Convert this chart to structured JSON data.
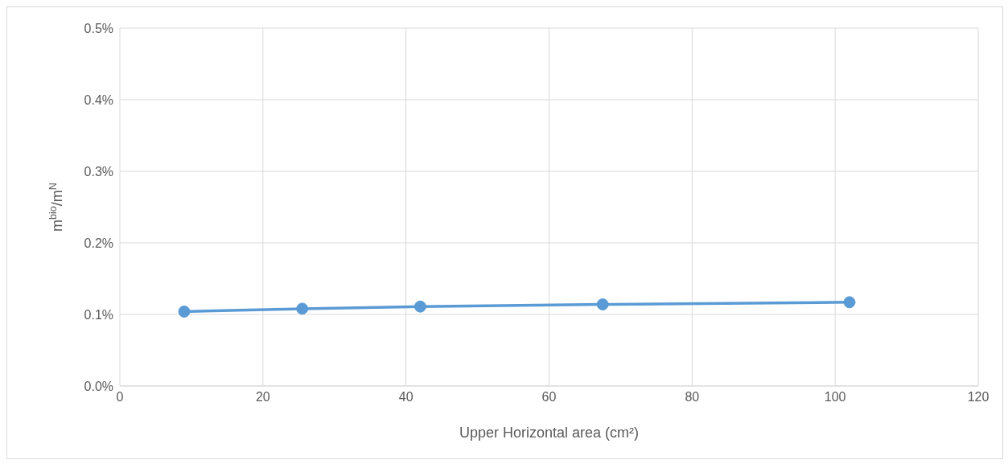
{
  "chart_data": {
    "type": "line",
    "xlabel": "Upper Horizontal area (cm²)",
    "ylabel": "m$^{bio}$/m$^{N}$",
    "x": [
      9,
      25.5,
      42,
      67.5,
      102
    ],
    "series": [
      {
        "color": "#5b9bd5",
        "values": [
          0.104,
          0.108,
          0.111,
          0.114,
          0.117
        ]
      }
    ],
    "xlim": [
      0,
      120
    ],
    "xticks": [
      0,
      20,
      40,
      60,
      80,
      100,
      120
    ],
    "ylim": [
      0,
      0.5
    ],
    "yticks": [
      {
        "value": 0,
        "label": "0.0%"
      },
      {
        "value": 0.1,
        "label": "0.1%"
      },
      {
        "value": 0.2,
        "label": "0.2%"
      },
      {
        "value": 0.3,
        "label": "0.3%"
      },
      {
        "value": 0.4,
        "label": "0.4%"
      },
      {
        "value": 0.5,
        "label": "0.5%"
      }
    ],
    "grid": true,
    "marker": "circle",
    "line_style": "solid"
  }
}
